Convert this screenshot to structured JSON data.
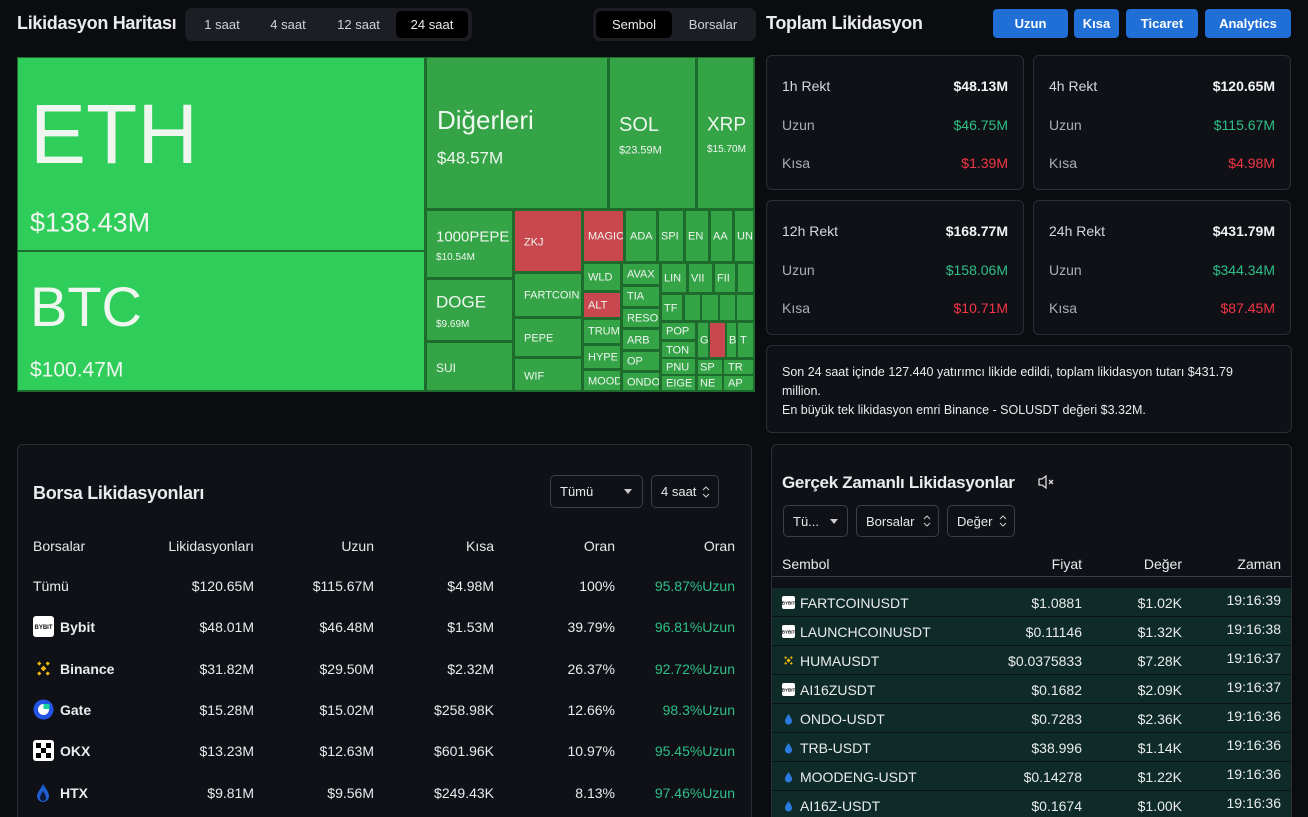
{
  "header": {
    "title": "Likidasyon Haritası",
    "time_tabs": [
      "1 saat",
      "4 saat",
      "12 saat",
      "24 saat"
    ],
    "view_tabs": [
      "Sembol",
      "Borsalar"
    ]
  },
  "treemap": [
    {
      "label": "ETH",
      "value": "$138.43M"
    },
    {
      "label": "BTC",
      "value": "$100.47M"
    },
    {
      "label": "Diğerleri",
      "value": "$48.57M"
    },
    {
      "label": "SOL",
      "value": "$23.59M"
    },
    {
      "label": "XRP",
      "value": "$15.70M"
    },
    {
      "label": "1000PEPE",
      "value": "$10.54M"
    },
    {
      "label": "DOGE",
      "value": "$9.69M"
    },
    {
      "label": "SUI"
    },
    {
      "label": "ZKJ"
    },
    {
      "label": "FARTCOIN"
    },
    {
      "label": "PEPE"
    },
    {
      "label": "WIF"
    },
    {
      "label": "MAGIC"
    },
    {
      "label": "ADA"
    },
    {
      "label": "SPI"
    },
    {
      "label": "EN"
    },
    {
      "label": "AA"
    },
    {
      "label": "UN"
    },
    {
      "label": "WLD"
    },
    {
      "label": "ALT"
    },
    {
      "label": "TRUM"
    },
    {
      "label": "HYPE"
    },
    {
      "label": "MOOD"
    },
    {
      "label": "AVAX"
    },
    {
      "label": "TIA"
    },
    {
      "label": "RESO"
    },
    {
      "label": "ARB"
    },
    {
      "label": "OP"
    },
    {
      "label": "ONDO"
    },
    {
      "label": "LIN"
    },
    {
      "label": "VII"
    },
    {
      "label": "FII"
    },
    {
      "label": "TF"
    },
    {
      "label": "POP"
    },
    {
      "label": "TON"
    },
    {
      "label": "PNU"
    },
    {
      "label": "EIGE"
    },
    {
      "label": "G"
    },
    {
      "label": "B"
    },
    {
      "label": "T"
    },
    {
      "label": "SP"
    },
    {
      "label": "TR"
    },
    {
      "label": "NE"
    },
    {
      "label": "AP"
    }
  ],
  "totals": {
    "title": "Toplam Likidasyon",
    "buttons": [
      "Uzun",
      "Kısa",
      "Ticaret",
      "Analytics"
    ],
    "cards": [
      {
        "title": "1h Rekt",
        "total": "$48.13M",
        "long_label": "Uzun",
        "long": "$46.75M",
        "short_label": "Kısa",
        "short": "$1.39M"
      },
      {
        "title": "4h Rekt",
        "total": "$120.65M",
        "long_label": "Uzun",
        "long": "$115.67M",
        "short_label": "Kısa",
        "short": "$4.98M"
      },
      {
        "title": "12h Rekt",
        "total": "$168.77M",
        "long_label": "Uzun",
        "long": "$158.06M",
        "short_label": "Kısa",
        "short": "$10.71M"
      },
      {
        "title": "24h Rekt",
        "total": "$431.79M",
        "long_label": "Uzun",
        "long": "$344.34M",
        "short_label": "Kısa",
        "short": "$87.45M"
      }
    ],
    "summary": [
      "Son 24 saat içinde 127.440 yatırımcı likide edildi, toplam likidasyon tutarı $431.79 million.",
      "En büyük tek likidasyon emri Binance - SOLUSDT değeri $3.32M."
    ]
  },
  "exchanges": {
    "title": "Borsa Likidasyonları",
    "filters": [
      "Tümü",
      "4 saat"
    ],
    "columns": [
      "Borsalar",
      "Likidasyonları",
      "Uzun",
      "Kısa",
      "Oran",
      "Oran"
    ],
    "rows": [
      [
        "Tümü",
        "$120.65M",
        "$115.67M",
        "$4.98M",
        "100%",
        "95.87%Uzun"
      ],
      [
        "Bybit",
        "$48.01M",
        "$46.48M",
        "$1.53M",
        "39.79%",
        "96.81%Uzun"
      ],
      [
        "Binance",
        "$31.82M",
        "$29.50M",
        "$2.32M",
        "26.37%",
        "92.72%Uzun"
      ],
      [
        "Gate",
        "$15.28M",
        "$15.02M",
        "$258.98K",
        "12.66%",
        "98.3%Uzun"
      ],
      [
        "OKX",
        "$13.23M",
        "$12.63M",
        "$601.96K",
        "10.97%",
        "95.45%Uzun"
      ],
      [
        "HTX",
        "$9.81M",
        "$9.56M",
        "$249.43K",
        "8.13%",
        "97.46%Uzun"
      ]
    ]
  },
  "realtime": {
    "title": "Gerçek Zamanlı Likidasyonlar",
    "filters": [
      "Tü...",
      "Borsalar",
      "Değer"
    ],
    "columns": [
      "Sembol",
      "Fiyat",
      "Değer",
      "Zaman"
    ],
    "rows": [
      [
        "FARTCOINUSDT",
        "$1.0881",
        "$1.02K",
        "19:16:39"
      ],
      [
        "LAUNCHCOINUSDT",
        "$0.11146",
        "$1.32K",
        "19:16:38"
      ],
      [
        "HUMAUSDT",
        "$0.0375833",
        "$7.28K",
        "19:16:37"
      ],
      [
        "AI16ZUSDT",
        "$0.1682",
        "$2.09K",
        "19:16:37"
      ],
      [
        "ONDO-USDT",
        "$0.7283",
        "$2.36K",
        "19:16:36"
      ],
      [
        "TRB-USDT",
        "$38.996",
        "$1.14K",
        "19:16:36"
      ],
      [
        "MOODENG-USDT",
        "$0.14278",
        "$1.22K",
        "19:16:36"
      ],
      [
        "AI16Z-USDT",
        "$0.1674",
        "$1.00K",
        "19:16:36"
      ]
    ]
  }
}
